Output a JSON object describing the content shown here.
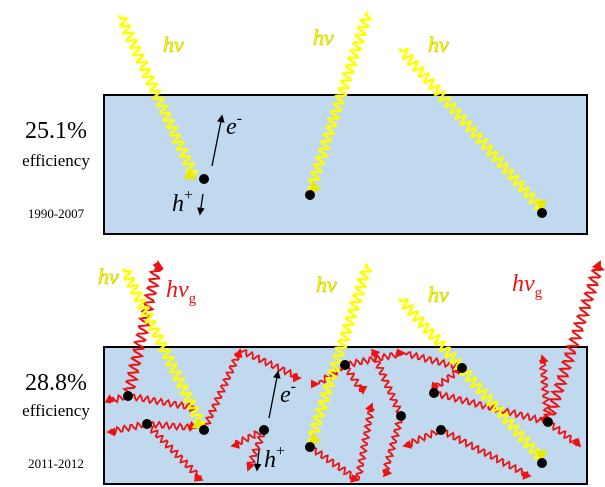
{
  "top_panel": {
    "efficiency_value": "25.1%",
    "efficiency_label": "efficiency",
    "years": "1990-2007",
    "photon_h": "h",
    "photon_nu": "ν",
    "electron_e": "e",
    "electron_sign": "-",
    "hole_h": "h",
    "hole_sign": "+",
    "box_fill": "#c0d9ee",
    "photon_color": "#ffff00"
  },
  "bottom_panel": {
    "efficiency_value": "28.8%",
    "efficiency_label": "efficiency",
    "years": "2011-2012",
    "photon_h": "h",
    "photon_nu": "ν",
    "emitted_h": "h",
    "emitted_nu": "ν",
    "emitted_sub": "g",
    "electron_e": "e",
    "electron_sign": "-",
    "hole_h": "h",
    "hole_sign": "+",
    "emission_color": "#ee1111"
  }
}
